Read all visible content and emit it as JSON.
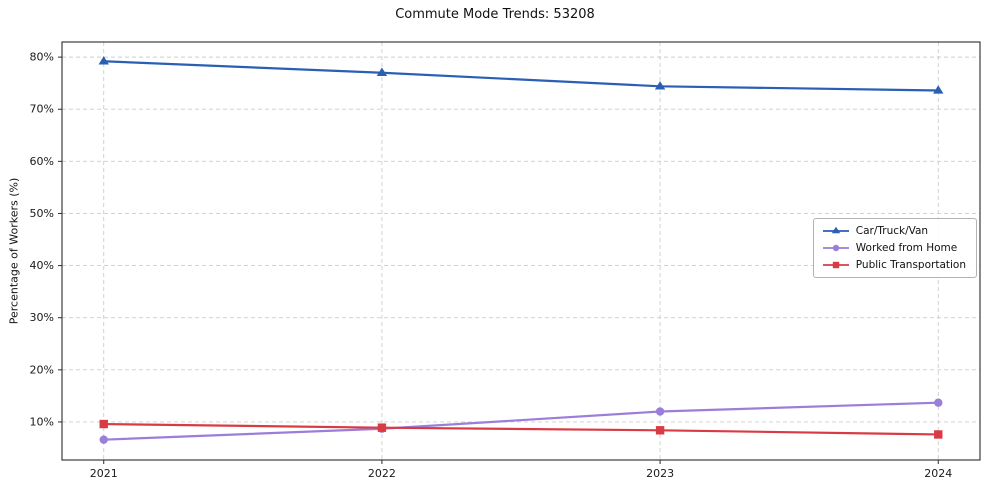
{
  "chart_data": {
    "type": "line",
    "title": "Commute Mode Trends: 53208",
    "xlabel": "",
    "ylabel": "Percentage of Workers (%)",
    "x": [
      2021,
      2022,
      2023,
      2024
    ],
    "x_tick_labels": [
      "2021",
      "2022",
      "2023",
      "2024"
    ],
    "xlim": [
      2020.85,
      2024.15
    ],
    "ylim": [
      2.7,
      82.9
    ],
    "yticks": [
      10,
      20,
      30,
      40,
      50,
      60,
      70,
      80
    ],
    "ytick_labels": [
      "10%",
      "20%",
      "30%",
      "40%",
      "50%",
      "60%",
      "70%",
      "80%"
    ],
    "grid": true,
    "grid_style": "dashed",
    "legend_position": "center-right",
    "series": [
      {
        "name": "Car/Truck/Van",
        "marker": "triangle",
        "color": "#2a5fb4",
        "values": [
          79.2,
          77.0,
          74.4,
          73.6
        ]
      },
      {
        "name": "Worked from Home",
        "marker": "circle",
        "color": "#9b7ed9",
        "values": [
          6.6,
          8.7,
          12.0,
          13.7
        ]
      },
      {
        "name": "Public Transportation",
        "marker": "square",
        "color": "#d93b45",
        "values": [
          9.6,
          8.9,
          8.4,
          7.6
        ]
      }
    ]
  }
}
